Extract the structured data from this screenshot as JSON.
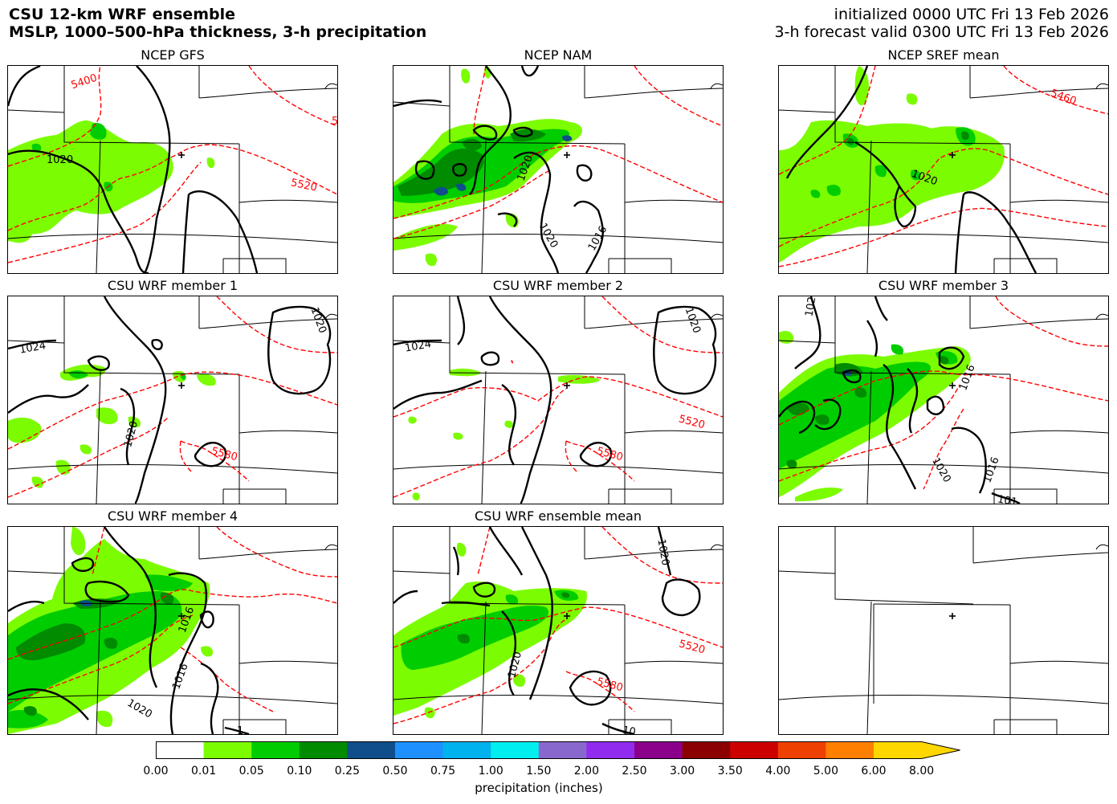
{
  "header": {
    "title_line1": "CSU 12-km WRF ensemble",
    "title_line2": "MSLP, 1000–500-hPa thickness, 3-h precipitation",
    "init_line": "initialized 0000 UTC Fri 13 Feb 2026",
    "valid_line": "3-h forecast valid 0300 UTC Fri 13 Feb 2026"
  },
  "colors": {
    "thickness": "#ff0000",
    "isobar": "#000000",
    "precip_scale": [
      "#ffffff",
      "#7cfc00",
      "#00cd00",
      "#008b00",
      "#104e8b",
      "#1e90ff",
      "#00b2ee",
      "#00eeee",
      "#8968cd",
      "#912cee",
      "#8b008b",
      "#8b0000",
      "#cd0000",
      "#ee4000",
      "#ff7f00",
      "#ffd700"
    ]
  },
  "panels": [
    {
      "title": "NCEP GFS",
      "isobar_labels": [
        "1020"
      ],
      "thickness_labels": [
        "5400",
        "5520",
        "5"
      ]
    },
    {
      "title": "NCEP NAM",
      "isobar_labels": [
        "1020",
        "1020",
        "1016"
      ],
      "thickness_labels": []
    },
    {
      "title": "NCEP SREF mean",
      "isobar_labels": [
        "1020"
      ],
      "thickness_labels": [
        "5460"
      ]
    },
    {
      "title": "CSU WRF member 1",
      "isobar_labels": [
        "1024",
        "1020",
        "1020"
      ],
      "thickness_labels": [
        "5580"
      ]
    },
    {
      "title": "CSU WRF member 2",
      "isobar_labels": [
        "1024",
        "1020"
      ],
      "thickness_labels": [
        "5520",
        "5580"
      ]
    },
    {
      "title": "CSU WRF member 3",
      "isobar_labels": [
        "102",
        "1016",
        "1020",
        "1016",
        "101"
      ],
      "thickness_labels": []
    },
    {
      "title": "CSU WRF member 4",
      "isobar_labels": [
        "1016",
        "1016",
        "1020",
        "1"
      ],
      "thickness_labels": []
    },
    {
      "title": "CSU WRF ensemble mean",
      "isobar_labels": [
        "1020",
        "1020",
        "10"
      ],
      "thickness_labels": [
        "5520",
        "5580"
      ]
    },
    {
      "title": "",
      "isobar_labels": [],
      "thickness_labels": []
    }
  ],
  "colorbar": {
    "ticks": [
      "0.00",
      "0.01",
      "0.05",
      "0.10",
      "0.25",
      "0.50",
      "0.75",
      "1.00",
      "1.50",
      "2.00",
      "2.50",
      "3.00",
      "3.50",
      "4.00",
      "5.00",
      "6.00",
      "8.00"
    ],
    "label": "precipitation (inches)",
    "extend": "max"
  }
}
